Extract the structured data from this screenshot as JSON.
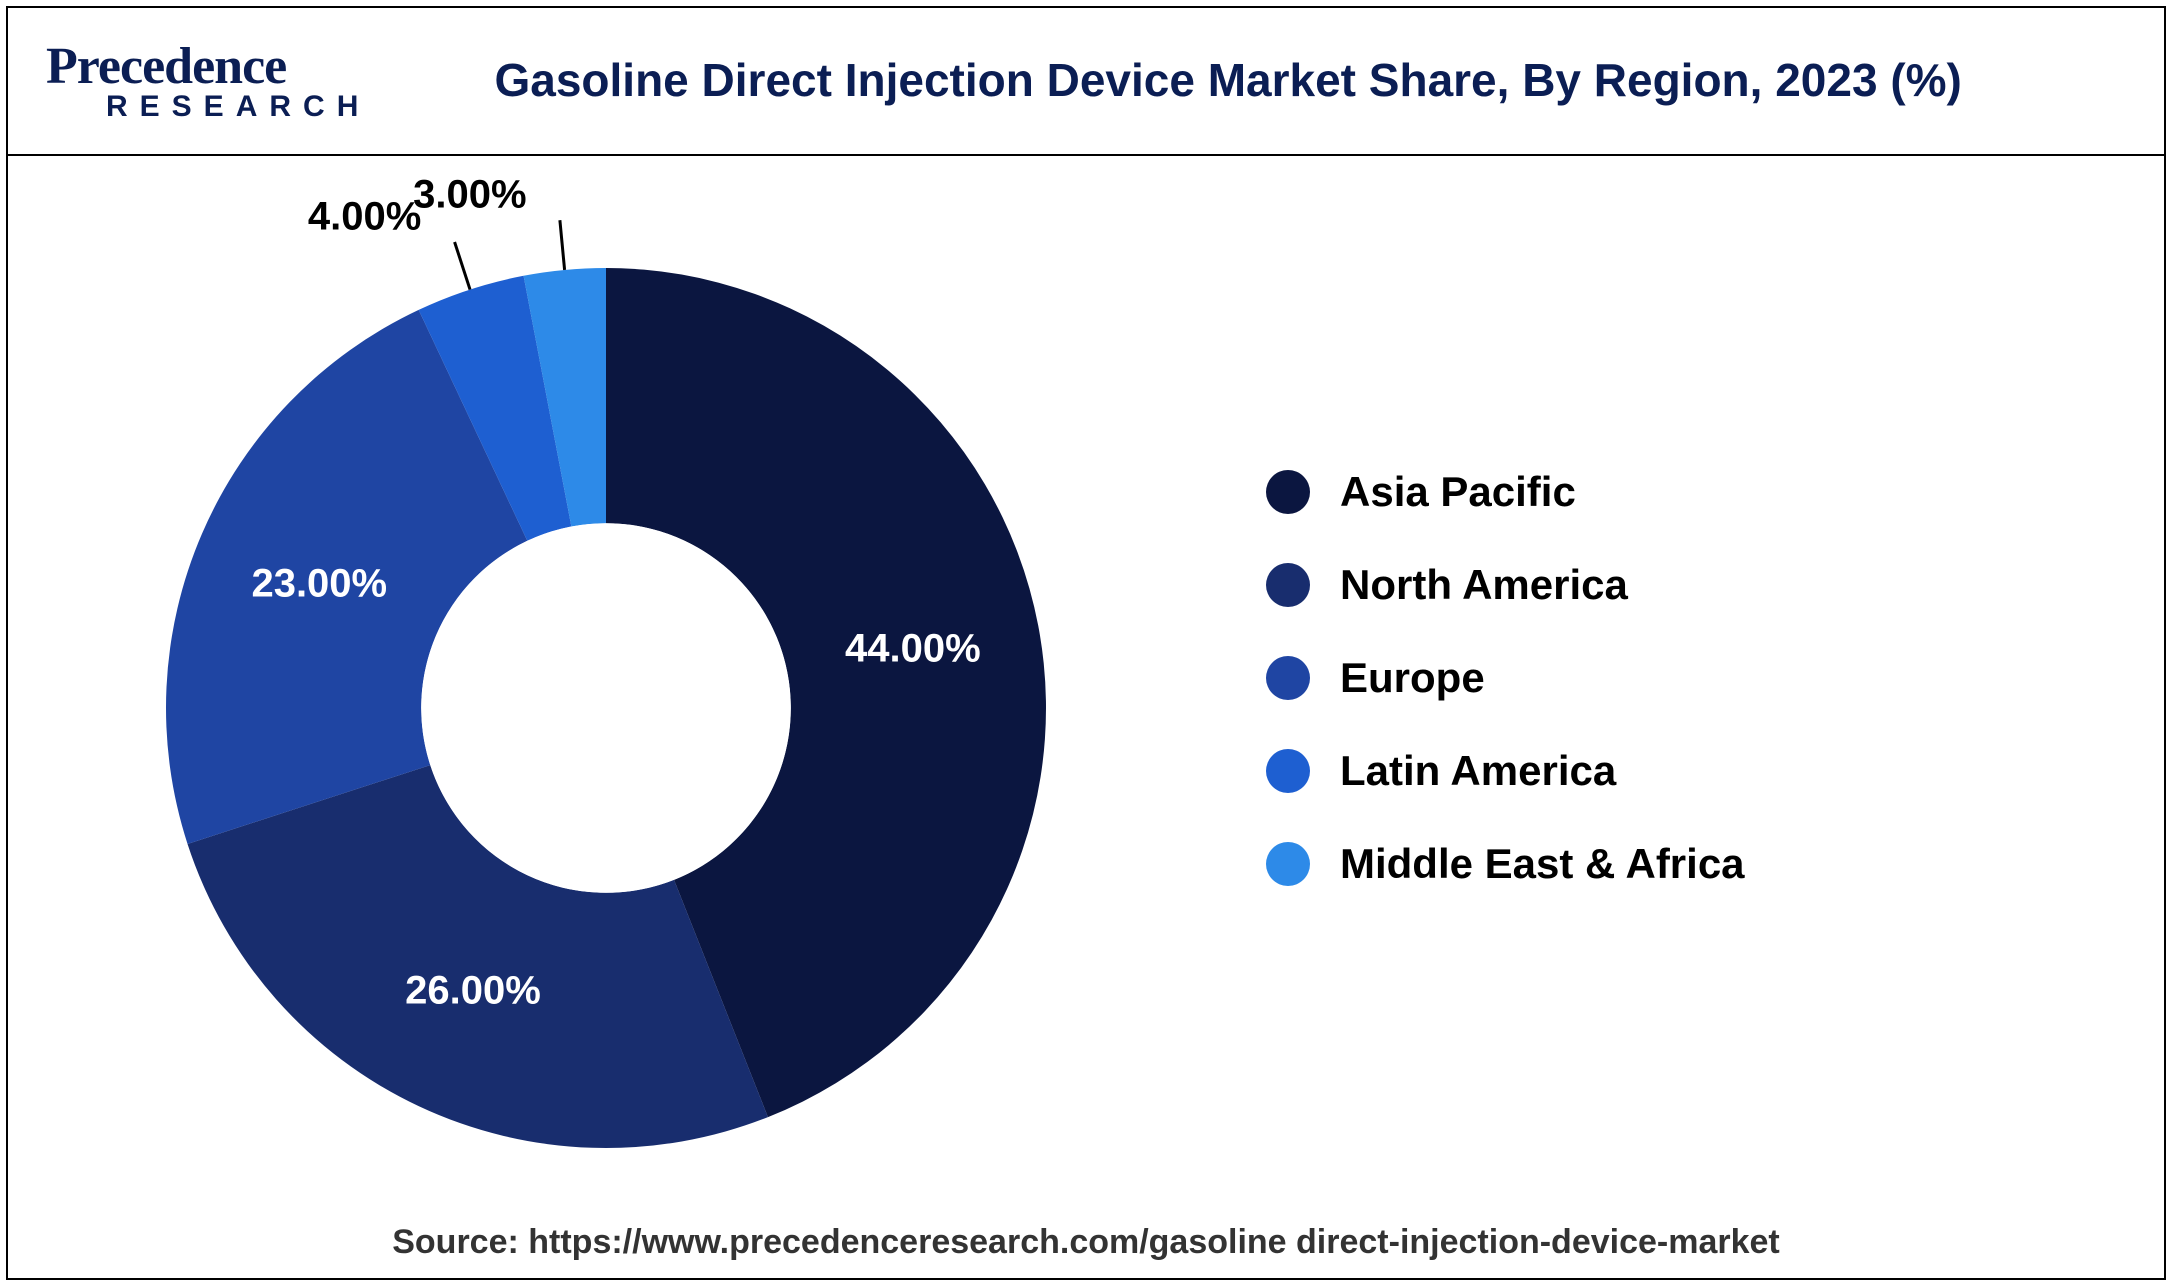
{
  "brand": {
    "name_top": "Precedence",
    "name_bottom": "RESEARCH",
    "color": "#0b1e54"
  },
  "title": "Gasoline Direct Injection Device Market Share, By Region, 2023 (%)",
  "chart": {
    "type": "donut",
    "inner_radius_ratio": 0.42,
    "outer_radius": 440,
    "center_hole_color": "#ffffff",
    "background_color": "#ffffff",
    "start_angle_deg": 0,
    "label_fontsize": 40,
    "label_fontweight": 700,
    "slices": [
      {
        "label": "Asia Pacific",
        "value": 44.0,
        "display": "44.00%",
        "color": "#0b1640",
        "label_color": "#ffffff",
        "label_inside": true
      },
      {
        "label": "North America",
        "value": 26.0,
        "display": "26.00%",
        "color": "#182d6e",
        "label_color": "#ffffff",
        "label_inside": true
      },
      {
        "label": "Europe",
        "value": 23.0,
        "display": "23.00%",
        "color": "#1f45a3",
        "label_color": "#ffffff",
        "label_inside": true
      },
      {
        "label": "Latin America",
        "value": 4.0,
        "display": "4.00%",
        "color": "#1e5fd1",
        "label_color": "#000000",
        "label_inside": false
      },
      {
        "label": "Middle East & Africa",
        "value": 3.0,
        "display": "3.00%",
        "color": "#2d8ae8",
        "label_color": "#000000",
        "label_inside": false
      }
    ]
  },
  "legend": {
    "swatch_shape": "circle",
    "fontsize": 42,
    "fontweight": 700
  },
  "source": "Source: https://www.precedenceresearch.com/gasoline direct-injection-device-market"
}
